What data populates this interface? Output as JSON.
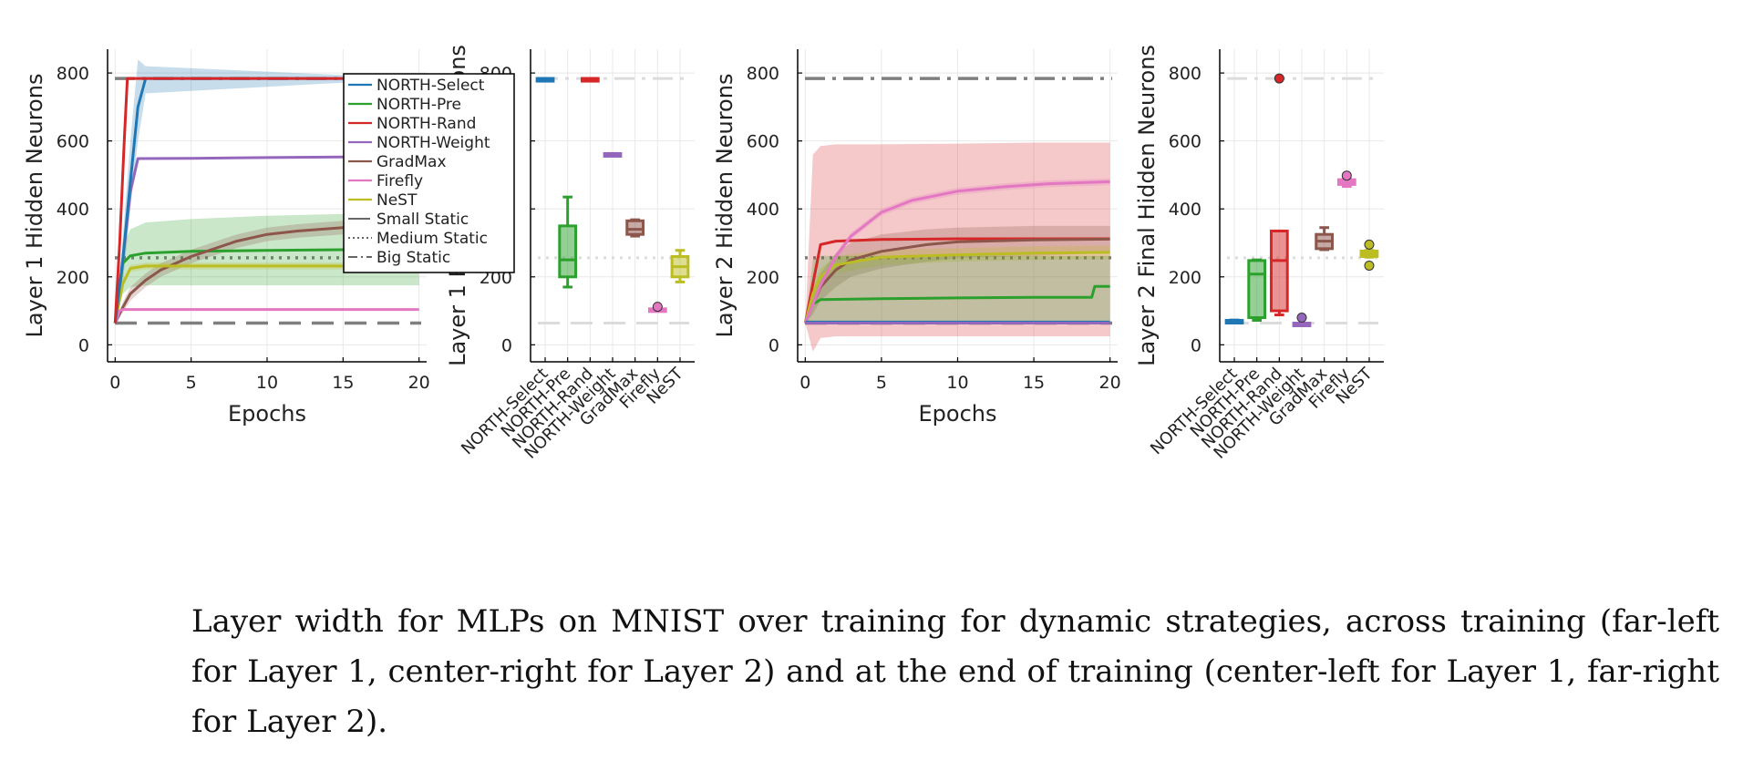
{
  "colors": {
    "north_select": "#1f77b4",
    "north_pre": "#2ca02c",
    "north_rand": "#d62728",
    "north_weight": "#9467bd",
    "gradmax": "#8c564b",
    "firefly": "#e377c2",
    "nest": "#bcbd22",
    "static": "#7f7f7f"
  },
  "legend": {
    "entries": [
      "NORTH-Select",
      "NORTH-Pre",
      "NORTH-Rand",
      "NORTH-Weight",
      "GradMax",
      "Firefly",
      "NeST",
      "Small Static",
      "Medium Static",
      "Big Static"
    ],
    "placement": "top-right"
  },
  "caption": "Layer width for MLPs on MNIST over training for dynamic strategies, across training (far-left for Layer 1, center-right for Layer 2) and at the end of training (center-left for Layer 1, far-right for Layer 2).",
  "chart_data": [
    {
      "type": "line",
      "ylabel": "Layer 1 Hidden Neurons",
      "xlabel": "Epochs",
      "xlim": [
        -0.5,
        20.5
      ],
      "ylim": [
        -50,
        870
      ],
      "xticks": [
        0,
        5,
        10,
        15,
        20
      ],
      "yticks": [
        0,
        200,
        400,
        600,
        800
      ],
      "grid": true,
      "legend": true,
      "reference_lines": [
        {
          "name": "Small Static",
          "y": 64,
          "style": "dashed"
        },
        {
          "name": "Medium Static",
          "y": 256,
          "style": "dotted"
        },
        {
          "name": "Big Static",
          "y": 784,
          "style": "dashdot"
        }
      ],
      "series": [
        {
          "name": "NORTH-Pre",
          "x": [
            0,
            0.5,
            1,
            2,
            5,
            10,
            15,
            20
          ],
          "y": [
            64,
            240,
            262,
            270,
            275,
            278,
            280,
            282
          ],
          "band_lo": [
            64,
            150,
            170,
            175,
            175,
            175,
            175,
            175
          ],
          "band_hi": [
            64,
            290,
            340,
            360,
            370,
            380,
            385,
            385
          ]
        },
        {
          "name": "GradMax",
          "x": [
            0,
            0.5,
            1,
            2,
            3,
            5,
            8,
            10,
            12,
            15,
            20
          ],
          "y": [
            64,
            110,
            150,
            190,
            220,
            260,
            305,
            325,
            335,
            345,
            350
          ],
          "band_lo": [
            64,
            95,
            130,
            170,
            200,
            240,
            285,
            305,
            315,
            325,
            330
          ],
          "band_hi": [
            64,
            125,
            170,
            210,
            240,
            280,
            325,
            345,
            355,
            365,
            370
          ]
        },
        {
          "name": "NeST",
          "x": [
            0,
            0.5,
            1,
            2,
            5,
            10,
            20
          ],
          "y": [
            64,
            180,
            225,
            232,
            232,
            232,
            232
          ],
          "band_lo": [
            64,
            170,
            215,
            222,
            222,
            222,
            222
          ],
          "band_hi": [
            64,
            190,
            235,
            242,
            242,
            242,
            242
          ]
        },
        {
          "name": "Firefly",
          "x": [
            0,
            0.3,
            0.5,
            20
          ],
          "y": [
            64,
            100,
            104,
            104
          ]
        },
        {
          "name": "NORTH-Weight",
          "x": [
            0,
            0.5,
            1,
            1.5,
            5,
            10,
            15,
            20
          ],
          "y": [
            64,
            250,
            450,
            548,
            549,
            551,
            553,
            555
          ]
        },
        {
          "name": "NORTH-Select",
          "x": [
            0,
            0.5,
            1,
            1.5,
            2,
            20
          ],
          "y": [
            64,
            250,
            480,
            700,
            784,
            784
          ],
          "band_lo": [
            64,
            180,
            400,
            600,
            740,
            784
          ],
          "band_hi": [
            64,
            320,
            600,
            840,
            820,
            784
          ]
        },
        {
          "name": "NORTH-Rand",
          "x": [
            0,
            0.3,
            0.6,
            0.8,
            20
          ],
          "y": [
            64,
            300,
            600,
            784,
            784
          ]
        }
      ]
    },
    {
      "type": "box",
      "ylabel": "Layer 1 Final Hidden Neurons",
      "categories": [
        "NORTH-Select",
        "NORTH-Pre",
        "NORTH-Rand",
        "NORTH-Weight",
        "GradMax",
        "Firefly",
        "NeST"
      ],
      "ylim": [
        -50,
        870
      ],
      "yticks": [
        0,
        200,
        400,
        600,
        800
      ],
      "grid": true,
      "reference_lines": [
        {
          "name": "Small Static",
          "y": 64,
          "style": "dashed"
        },
        {
          "name": "Medium Static",
          "y": 256,
          "style": "dotted"
        },
        {
          "name": "Big Static",
          "y": 784,
          "style": "dashdot"
        }
      ],
      "boxes": [
        {
          "name": "NORTH-Select",
          "min": 784,
          "q1": 784,
          "median": 784,
          "q3": 784,
          "max": 784,
          "outliers": []
        },
        {
          "name": "NORTH-Pre",
          "min": 170,
          "q1": 200,
          "median": 250,
          "q3": 350,
          "max": 435,
          "outliers": []
        },
        {
          "name": "NORTH-Rand",
          "min": 784,
          "q1": 784,
          "median": 784,
          "q3": 784,
          "max": 784,
          "outliers": []
        },
        {
          "name": "NORTH-Weight",
          "min": 557,
          "q1": 557,
          "median": 560,
          "q3": 563,
          "max": 563,
          "outliers": []
        },
        {
          "name": "GradMax",
          "min": 320,
          "q1": 325,
          "median": 340,
          "q3": 365,
          "max": 368,
          "outliers": []
        },
        {
          "name": "Firefly",
          "min": 100,
          "q1": 100,
          "median": 104,
          "q3": 106,
          "max": 106,
          "outliers": [
            112
          ]
        },
        {
          "name": "NeST",
          "min": 185,
          "q1": 200,
          "median": 230,
          "q3": 260,
          "max": 278,
          "outliers": []
        }
      ]
    },
    {
      "type": "line",
      "ylabel": "Layer 2 Hidden Neurons",
      "xlabel": "Epochs",
      "xlim": [
        -0.5,
        20.5
      ],
      "ylim": [
        -50,
        870
      ],
      "xticks": [
        0,
        5,
        10,
        15,
        20
      ],
      "yticks": [
        0,
        200,
        400,
        600,
        800
      ],
      "grid": true,
      "legend": false,
      "reference_lines": [
        {
          "name": "Small Static",
          "y": 64,
          "style": "dashed"
        },
        {
          "name": "Medium Static",
          "y": 256,
          "style": "dotted"
        },
        {
          "name": "Big Static",
          "y": 784,
          "style": "dashdot"
        }
      ],
      "series": [
        {
          "name": "NORTH-Rand",
          "x": [
            0,
            0.5,
            1,
            2,
            5,
            10,
            15,
            20
          ],
          "y": [
            64,
            180,
            295,
            305,
            310,
            312,
            312,
            312
          ],
          "band_lo": [
            64,
            -20,
            20,
            25,
            25,
            25,
            25,
            25
          ],
          "band_hi": [
            64,
            560,
            585,
            590,
            590,
            592,
            595,
            595
          ]
        },
        {
          "name": "GradMax",
          "x": [
            0,
            0.5,
            1,
            2,
            3,
            5,
            8,
            10,
            15,
            20
          ],
          "y": [
            64,
            120,
            170,
            220,
            250,
            275,
            295,
            303,
            309,
            311
          ],
          "band_lo": [
            64,
            90,
            130,
            170,
            200,
            225,
            245,
            255,
            262,
            270
          ],
          "band_hi": [
            64,
            150,
            210,
            270,
            300,
            325,
            340,
            345,
            350,
            350
          ]
        },
        {
          "name": "NeST",
          "x": [
            0,
            0.5,
            1,
            2,
            5,
            10,
            15,
            20
          ],
          "y": [
            64,
            150,
            200,
            235,
            258,
            265,
            270,
            272
          ],
          "band_lo": [
            64,
            130,
            175,
            210,
            235,
            245,
            250,
            252
          ],
          "band_hi": [
            64,
            170,
            225,
            260,
            280,
            285,
            290,
            292
          ]
        },
        {
          "name": "NORTH-Pre",
          "x": [
            0,
            0.5,
            1,
            5,
            10,
            15,
            18.8,
            19,
            20
          ],
          "y": [
            64,
            120,
            133,
            136,
            138,
            140,
            140,
            172,
            172
          ],
          "band_lo": [
            64,
            64,
            64,
            64,
            64,
            64,
            64,
            64,
            64
          ],
          "band_hi": [
            64,
            250,
            262,
            262,
            262,
            262,
            262,
            262,
            262
          ]
        },
        {
          "name": "Firefly",
          "x": [
            0,
            1,
            2,
            3,
            5,
            7,
            10,
            13,
            16,
            20
          ],
          "y": [
            64,
            175,
            260,
            320,
            390,
            425,
            452,
            465,
            474,
            480
          ],
          "band_lo": [
            64,
            165,
            250,
            310,
            380,
            415,
            442,
            455,
            464,
            470
          ],
          "band_hi": [
            64,
            185,
            270,
            330,
            400,
            435,
            462,
            475,
            484,
            490
          ]
        },
        {
          "name": "NORTH-Select",
          "x": [
            0,
            20
          ],
          "y": [
            67,
            67
          ]
        },
        {
          "name": "NORTH-Weight",
          "x": [
            0,
            20
          ],
          "y": [
            64,
            64
          ]
        }
      ]
    },
    {
      "type": "box",
      "ylabel": "Layer 2 Final Hidden Neurons",
      "categories": [
        "NORTH-Select",
        "NORTH-Pre",
        "NORTH-Rand",
        "NORTH-Weight",
        "GradMax",
        "Firefly",
        "NeST"
      ],
      "ylim": [
        -50,
        870
      ],
      "yticks": [
        0,
        200,
        400,
        600,
        800
      ],
      "grid": true,
      "reference_lines": [
        {
          "name": "Small Static",
          "y": 64,
          "style": "dashed"
        },
        {
          "name": "Medium Static",
          "y": 256,
          "style": "dotted"
        },
        {
          "name": "Big Static",
          "y": 784,
          "style": "dashdot"
        }
      ],
      "boxes": [
        {
          "name": "NORTH-Select",
          "min": 66,
          "q1": 67,
          "median": 69,
          "q3": 72,
          "max": 73,
          "outliers": []
        },
        {
          "name": "NORTH-Pre",
          "min": 72,
          "q1": 80,
          "median": 208,
          "q3": 248,
          "max": 250,
          "outliers": []
        },
        {
          "name": "NORTH-Rand",
          "min": 88,
          "q1": 100,
          "median": 248,
          "q3": 335,
          "max": 335,
          "outliers": [
            784
          ]
        },
        {
          "name": "NORTH-Weight",
          "min": 64,
          "q1": 64,
          "median": 64,
          "q3": 64,
          "max": 64,
          "outliers": [
            80
          ]
        },
        {
          "name": "GradMax",
          "min": 280,
          "q1": 283,
          "median": 305,
          "q3": 325,
          "max": 345,
          "outliers": []
        },
        {
          "name": "Firefly",
          "min": 466,
          "q1": 472,
          "median": 478,
          "q3": 486,
          "max": 488,
          "outliers": [
            498
          ]
        },
        {
          "name": "NeST",
          "min": 258,
          "q1": 260,
          "median": 268,
          "q3": 276,
          "max": 278,
          "outliers": [
            295,
            233
          ]
        }
      ]
    }
  ]
}
